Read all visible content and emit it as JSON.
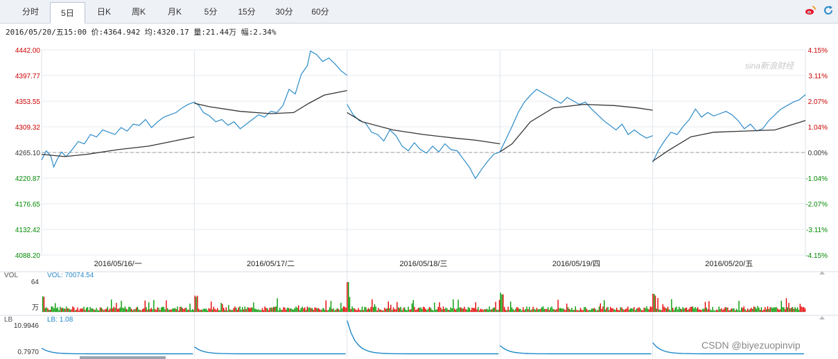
{
  "tabs": [
    {
      "label": "分时",
      "active": false
    },
    {
      "label": "5日",
      "active": true
    },
    {
      "label": "日K",
      "active": false
    },
    {
      "label": "周K",
      "active": false
    },
    {
      "label": "月K",
      "active": false
    },
    {
      "label": "5分",
      "active": false
    },
    {
      "label": "15分",
      "active": false
    },
    {
      "label": "30分",
      "active": false
    },
    {
      "label": "60分",
      "active": false
    }
  ],
  "icons": [
    "weibo-icon",
    "refresh-icon"
  ],
  "info": "2016/05/20/五15:00 价:4364.942 均:4320.17 量:21.44万 幅:2.34%",
  "watermark": "sina新浪财经",
  "footer_watermark": "CSDN @biyezuopinvip",
  "colors": {
    "price": "#2a8ac8",
    "avg": "#333333",
    "up": "#e60000",
    "down": "#009900",
    "axis_up": "#cc0000",
    "axis_down": "#008800",
    "lb": "#1e88c8"
  },
  "chart_data": {
    "type": "line",
    "title": "",
    "days": [
      "2016/05/16/一",
      "2016/05/17/二",
      "2016/05/18/三",
      "2016/05/19/四",
      "2016/05/20/五"
    ],
    "y_left_ticks": [
      "4442.00",
      "4397.77",
      "4353.55",
      "4309.32",
      "4265.10",
      "4220.87",
      "4176.65",
      "4132.42",
      "4088.20"
    ],
    "y_right_ticks": [
      "4.15%",
      "3.11%",
      "2.07%",
      "1.04%",
      "0.00%",
      "-1.04%",
      "-2.07%",
      "-3.11%",
      "-4.15%"
    ],
    "ylim": [
      4088.2,
      4442.0
    ],
    "reference_close": 4265.1,
    "grid": true,
    "series": [
      {
        "key": "price",
        "points": [
          [
            0,
            4252
          ],
          [
            0.03,
            4268
          ],
          [
            0.06,
            4259
          ],
          [
            0.08,
            4240
          ],
          [
            0.1,
            4252
          ],
          [
            0.13,
            4266
          ],
          [
            0.16,
            4258
          ],
          [
            0.2,
            4270
          ],
          [
            0.24,
            4284
          ],
          [
            0.28,
            4280
          ],
          [
            0.32,
            4296
          ],
          [
            0.36,
            4292
          ],
          [
            0.4,
            4304
          ],
          [
            0.44,
            4300
          ],
          [
            0.48,
            4296
          ],
          [
            0.52,
            4308
          ],
          [
            0.56,
            4302
          ],
          [
            0.6,
            4314
          ],
          [
            0.64,
            4312
          ],
          [
            0.68,
            4322
          ],
          [
            0.72,
            4308
          ],
          [
            0.76,
            4318
          ],
          [
            0.8,
            4326
          ],
          [
            0.84,
            4330
          ],
          [
            0.88,
            4334
          ],
          [
            0.92,
            4342
          ],
          [
            0.96,
            4348
          ],
          [
            1.0,
            4352
          ],
          [
            1.0,
            4352
          ],
          [
            1.03,
            4346
          ],
          [
            1.06,
            4334
          ],
          [
            1.1,
            4328
          ],
          [
            1.14,
            4318
          ],
          [
            1.18,
            4322
          ],
          [
            1.22,
            4312
          ],
          [
            1.26,
            4318
          ],
          [
            1.3,
            4306
          ],
          [
            1.34,
            4314
          ],
          [
            1.38,
            4322
          ],
          [
            1.42,
            4330
          ],
          [
            1.46,
            4326
          ],
          [
            1.5,
            4336
          ],
          [
            1.54,
            4334
          ],
          [
            1.58,
            4346
          ],
          [
            1.62,
            4374
          ],
          [
            1.66,
            4366
          ],
          [
            1.7,
            4400
          ],
          [
            1.74,
            4415
          ],
          [
            1.76,
            4440
          ],
          [
            1.8,
            4434
          ],
          [
            1.84,
            4422
          ],
          [
            1.88,
            4428
          ],
          [
            1.92,
            4418
          ],
          [
            1.96,
            4406
          ],
          [
            2.0,
            4398
          ],
          [
            2.0,
            4348
          ],
          [
            2.04,
            4330
          ],
          [
            2.08,
            4320
          ],
          [
            2.12,
            4316
          ],
          [
            2.16,
            4300
          ],
          [
            2.2,
            4296
          ],
          [
            2.24,
            4285
          ],
          [
            2.28,
            4304
          ],
          [
            2.32,
            4294
          ],
          [
            2.36,
            4276
          ],
          [
            2.4,
            4268
          ],
          [
            2.44,
            4282
          ],
          [
            2.48,
            4270
          ],
          [
            2.52,
            4264
          ],
          [
            2.56,
            4276
          ],
          [
            2.6,
            4266
          ],
          [
            2.64,
            4280
          ],
          [
            2.68,
            4270
          ],
          [
            2.72,
            4268
          ],
          [
            2.76,
            4254
          ],
          [
            2.8,
            4240
          ],
          [
            2.84,
            4220
          ],
          [
            2.88,
            4236
          ],
          [
            2.92,
            4250
          ],
          [
            2.96,
            4262
          ],
          [
            3.0,
            4266
          ],
          [
            3.0,
            4266
          ],
          [
            3.04,
            4288
          ],
          [
            3.08,
            4310
          ],
          [
            3.12,
            4334
          ],
          [
            3.16,
            4352
          ],
          [
            3.2,
            4364
          ],
          [
            3.24,
            4374
          ],
          [
            3.28,
            4368
          ],
          [
            3.32,
            4362
          ],
          [
            3.36,
            4356
          ],
          [
            3.4,
            4350
          ],
          [
            3.44,
            4360
          ],
          [
            3.48,
            4354
          ],
          [
            3.52,
            4348
          ],
          [
            3.56,
            4352
          ],
          [
            3.6,
            4340
          ],
          [
            3.64,
            4330
          ],
          [
            3.68,
            4320
          ],
          [
            3.72,
            4312
          ],
          [
            3.76,
            4304
          ],
          [
            3.8,
            4314
          ],
          [
            3.84,
            4296
          ],
          [
            3.88,
            4304
          ],
          [
            3.92,
            4296
          ],
          [
            3.96,
            4290
          ],
          [
            4.0,
            4294
          ],
          [
            4.0,
            4248
          ],
          [
            4.04,
            4270
          ],
          [
            4.08,
            4286
          ],
          [
            4.12,
            4300
          ],
          [
            4.16,
            4296
          ],
          [
            4.2,
            4310
          ],
          [
            4.24,
            4322
          ],
          [
            4.28,
            4340
          ],
          [
            4.32,
            4326
          ],
          [
            4.36,
            4334
          ],
          [
            4.4,
            4328
          ],
          [
            4.44,
            4332
          ],
          [
            4.48,
            4336
          ],
          [
            4.52,
            4330
          ],
          [
            4.56,
            4320
          ],
          [
            4.6,
            4306
          ],
          [
            4.64,
            4314
          ],
          [
            4.68,
            4302
          ],
          [
            4.72,
            4306
          ],
          [
            4.76,
            4320
          ],
          [
            4.8,
            4330
          ],
          [
            4.84,
            4340
          ],
          [
            4.88,
            4346
          ],
          [
            4.92,
            4352
          ],
          [
            4.96,
            4356
          ],
          [
            5.0,
            4364.9
          ]
        ]
      },
      {
        "key": "avg",
        "points": [
          [
            0,
            4262
          ],
          [
            0.15,
            4258
          ],
          [
            0.3,
            4262
          ],
          [
            0.5,
            4270
          ],
          [
            0.7,
            4276
          ],
          [
            0.85,
            4284
          ],
          [
            1.0,
            4292
          ],
          [
            1.0,
            4350
          ],
          [
            1.1,
            4344
          ],
          [
            1.3,
            4336
          ],
          [
            1.5,
            4332
          ],
          [
            1.65,
            4334
          ],
          [
            1.75,
            4350
          ],
          [
            1.85,
            4364
          ],
          [
            2.0,
            4372
          ],
          [
            2.0,
            4334
          ],
          [
            2.1,
            4318
          ],
          [
            2.3,
            4304
          ],
          [
            2.5,
            4296
          ],
          [
            2.7,
            4290
          ],
          [
            2.85,
            4286
          ],
          [
            3.0,
            4280
          ],
          [
            3.0,
            4266
          ],
          [
            3.08,
            4280
          ],
          [
            3.2,
            4318
          ],
          [
            3.35,
            4342
          ],
          [
            3.55,
            4348
          ],
          [
            3.75,
            4346
          ],
          [
            3.9,
            4342
          ],
          [
            4.0,
            4338
          ],
          [
            4.0,
            4250
          ],
          [
            4.1,
            4268
          ],
          [
            4.25,
            4292
          ],
          [
            4.4,
            4300
          ],
          [
            4.6,
            4302
          ],
          [
            4.8,
            4304
          ],
          [
            5.0,
            4320.2
          ]
        ]
      }
    ],
    "volume": {
      "label": "VOL",
      "value_label": "VOL: 70074.54",
      "max_label": "64",
      "unit_label": "万"
    },
    "lb": {
      "label": "LB",
      "value_label": "LB: 1.08",
      "max_label": "10.9946",
      "min_label": "0.7970"
    }
  }
}
